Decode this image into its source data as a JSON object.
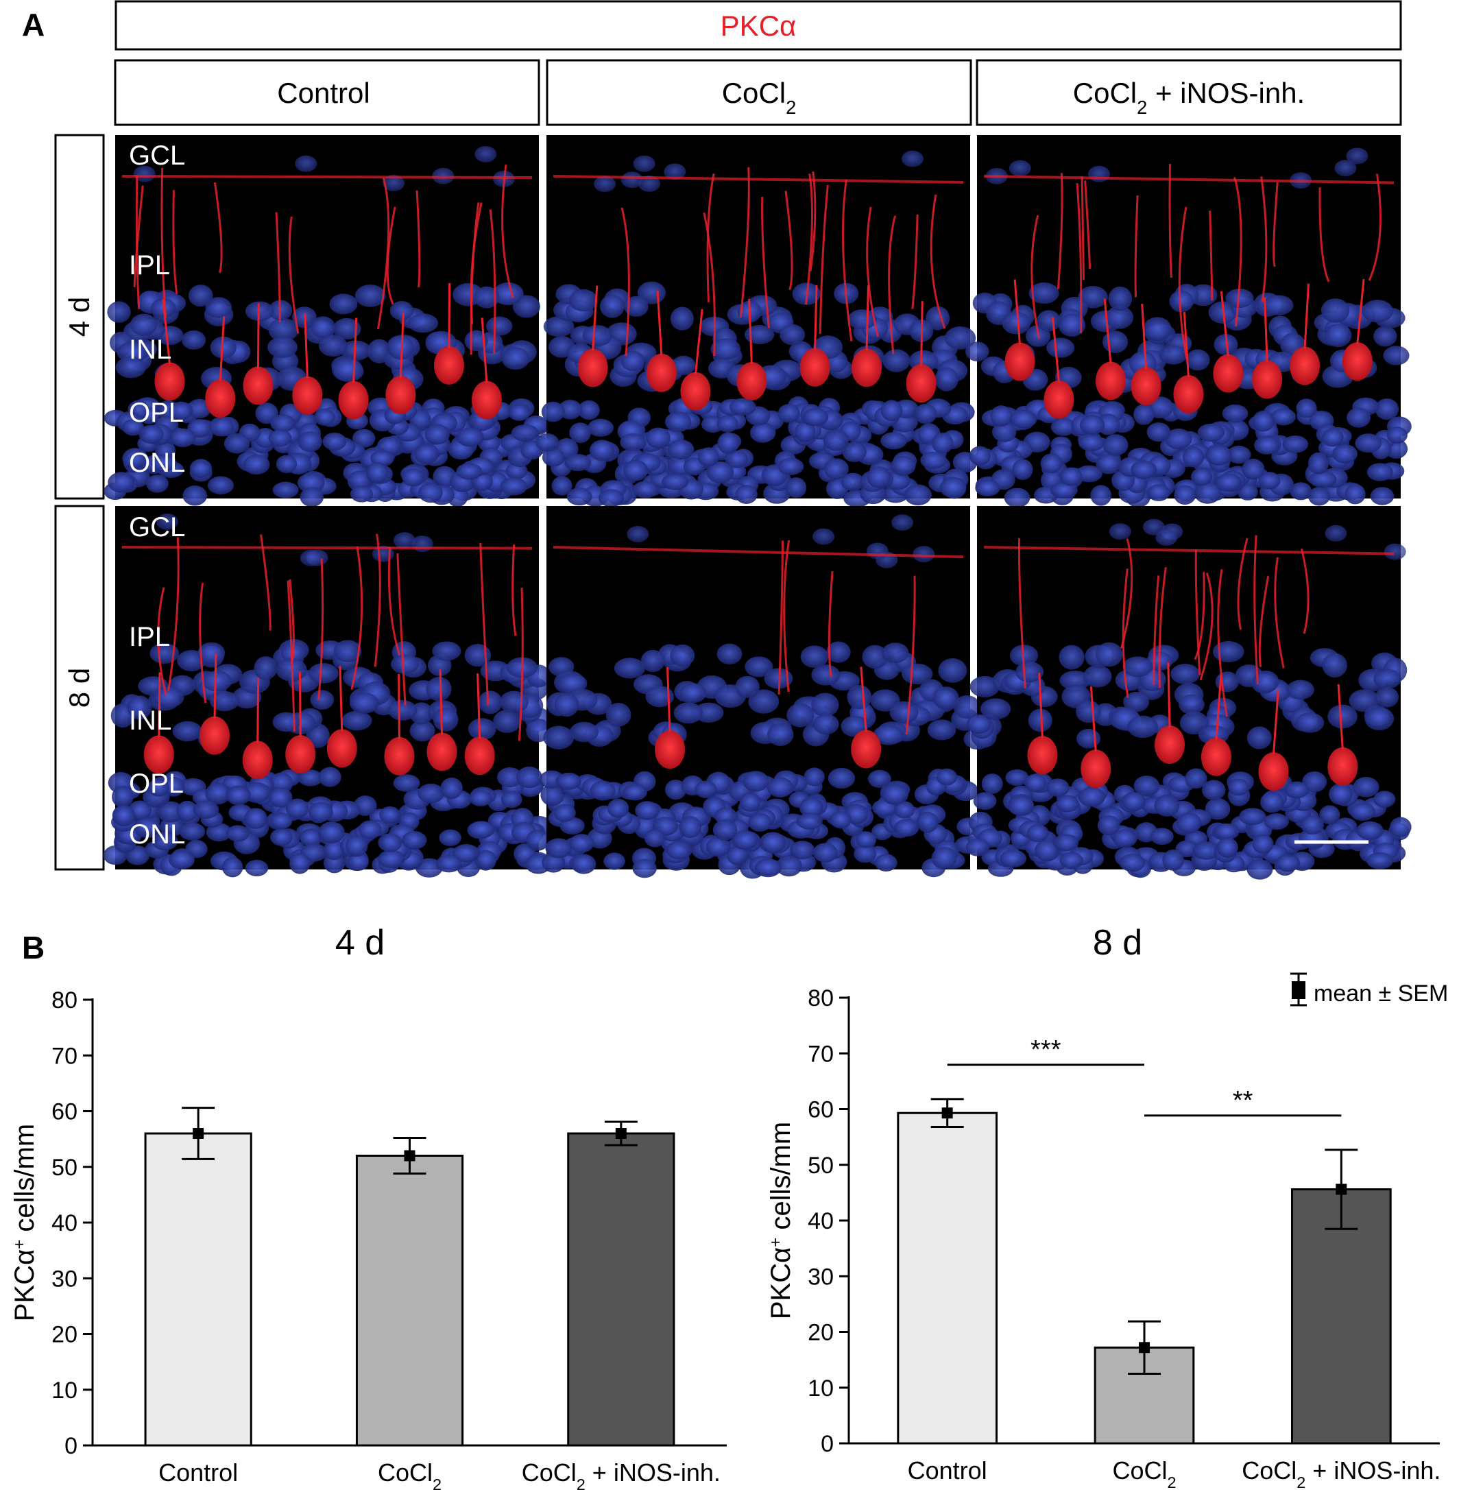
{
  "panel_a": {
    "letter": "A",
    "marker": "PKCα",
    "marker_color": "#e8202a",
    "columns": [
      "Control",
      "CoCl2",
      "CoCl2 + iNOS-inh."
    ],
    "rows": [
      "4 d",
      "8 d"
    ],
    "layers_top": [
      "GCL",
      "IPL",
      "INL",
      "OPL",
      "ONL"
    ],
    "layers_bottom": [
      "GCL",
      "IPL",
      "INL",
      "OPL",
      "ONL"
    ],
    "colors": {
      "nuclei": "#2a3b9a",
      "stain": "#e8202a",
      "background": "#000000"
    }
  },
  "panel_b": {
    "letter": "B",
    "legend": "mean ± SEM",
    "sig_labels": [
      "***",
      "**"
    ]
  },
  "chart_data": [
    {
      "type": "bar",
      "title": "4 d",
      "ylabel": "PKCα+ cells/mm",
      "ylim": [
        0,
        80
      ],
      "yticks": [
        0,
        10,
        20,
        30,
        40,
        50,
        60,
        70,
        80
      ],
      "categories": [
        "Control",
        "CoCl2",
        "CoCl2 + iNOS-inh."
      ],
      "values": [
        56,
        52,
        56
      ],
      "errors": [
        4.6,
        3.2,
        2.1
      ],
      "colors": [
        "#ebebeb",
        "#b2b2b2",
        "#555555"
      ]
    },
    {
      "type": "bar",
      "title": "8 d",
      "ylabel": "PKCα+ cells/mm",
      "ylim": [
        0,
        80
      ],
      "yticks": [
        0,
        10,
        20,
        30,
        40,
        50,
        60,
        70,
        80
      ],
      "categories": [
        "Control",
        "CoCl2",
        "CoCl2 + iNOS-inh."
      ],
      "values": [
        59.3,
        17.2,
        45.6
      ],
      "errors": [
        2.5,
        4.7,
        7.1
      ],
      "colors": [
        "#ebebeb",
        "#b2b2b2",
        "#555555"
      ],
      "significance": [
        {
          "from": "Control",
          "to": "CoCl2",
          "label": "***"
        },
        {
          "from": "CoCl2",
          "to": "CoCl2 + iNOS-inh.",
          "label": "**"
        }
      ]
    }
  ]
}
